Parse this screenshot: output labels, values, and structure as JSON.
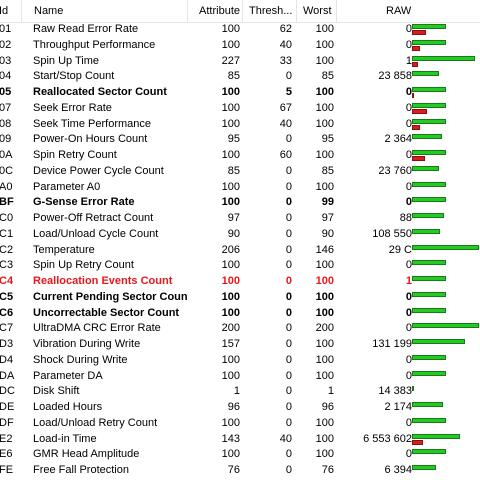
{
  "columns": {
    "id": "Id",
    "name": "Name",
    "attribute": "Attribute",
    "threshold": "Thresh...",
    "worst": "Worst",
    "raw": "RAW"
  },
  "colors": {
    "bar_green": "#22cc22",
    "bar_red": "#d42020",
    "critical_text": "#e8171c"
  },
  "rows": [
    {
      "id": "01",
      "name": "Raw Read Error Rate",
      "attr": "100",
      "thr": "62",
      "worst": "100",
      "raw": "0",
      "style": "normal",
      "green": 0.48,
      "red": 0.2
    },
    {
      "id": "02",
      "name": "Throughput Performance",
      "attr": "100",
      "thr": "40",
      "worst": "100",
      "raw": "0",
      "style": "normal",
      "green": 0.48,
      "red": 0.12
    },
    {
      "id": "03",
      "name": "Spin Up Time",
      "attr": "227",
      "thr": "33",
      "worst": "100",
      "raw": "1",
      "style": "normal",
      "green": 0.9,
      "red": 0.08
    },
    {
      "id": "04",
      "name": "Start/Stop Count",
      "attr": "85",
      "thr": "0",
      "worst": "85",
      "raw": "23 858",
      "style": "normal",
      "green": 0.38,
      "red": 0
    },
    {
      "id": "05",
      "name": "Reallocated Sector Count",
      "attr": "100",
      "thr": "5",
      "worst": "100",
      "raw": "0",
      "style": "bold",
      "green": 0.48,
      "red": 0.02
    },
    {
      "id": "07",
      "name": "Seek Error Rate",
      "attr": "100",
      "thr": "67",
      "worst": "100",
      "raw": "0",
      "style": "normal",
      "green": 0.48,
      "red": 0.22
    },
    {
      "id": "08",
      "name": "Seek Time Performance",
      "attr": "100",
      "thr": "40",
      "worst": "100",
      "raw": "0",
      "style": "normal",
      "green": 0.48,
      "red": 0.12
    },
    {
      "id": "09",
      "name": "Power-On Hours Count",
      "attr": "95",
      "thr": "0",
      "worst": "95",
      "raw": "2 364",
      "style": "normal",
      "green": 0.43,
      "red": 0
    },
    {
      "id": "0A",
      "name": "Spin Retry Count",
      "attr": "100",
      "thr": "60",
      "worst": "100",
      "raw": "0",
      "style": "normal",
      "green": 0.48,
      "red": 0.18
    },
    {
      "id": "0C",
      "name": "Device Power Cycle Count",
      "attr": "85",
      "thr": "0",
      "worst": "85",
      "raw": "23 760",
      "style": "normal",
      "green": 0.38,
      "red": 0
    },
    {
      "id": "A0",
      "name": "Parameter A0",
      "attr": "100",
      "thr": "0",
      "worst": "100",
      "raw": "0",
      "style": "normal",
      "green": 0.48,
      "red": 0
    },
    {
      "id": "BF",
      "name": "G-Sense Error Rate",
      "attr": "100",
      "thr": "0",
      "worst": "99",
      "raw": "0",
      "style": "bold",
      "green": 0.48,
      "red": 0
    },
    {
      "id": "C0",
      "name": "Power-Off Retract Count",
      "attr": "97",
      "thr": "0",
      "worst": "97",
      "raw": "88",
      "style": "normal",
      "green": 0.45,
      "red": 0
    },
    {
      "id": "C1",
      "name": "Load/Unload Cycle Count",
      "attr": "90",
      "thr": "0",
      "worst": "90",
      "raw": "108 550",
      "style": "normal",
      "green": 0.4,
      "red": 0
    },
    {
      "id": "C2",
      "name": "Temperature",
      "attr": "206",
      "thr": "0",
      "worst": "146",
      "raw": "29 C",
      "style": "normal",
      "green": 0.95,
      "red": 0
    },
    {
      "id": "C3",
      "name": "Spin Up Retry Count",
      "attr": "100",
      "thr": "0",
      "worst": "100",
      "raw": "0",
      "style": "normal",
      "green": 0.48,
      "red": 0
    },
    {
      "id": "C4",
      "name": "Reallocation Events Count",
      "attr": "100",
      "thr": "0",
      "worst": "100",
      "raw": "1",
      "style": "critical",
      "green": 0.48,
      "red": 0
    },
    {
      "id": "C5",
      "name": "Current Pending Sector Count",
      "attr": "100",
      "thr": "0",
      "worst": "100",
      "raw": "0",
      "style": "bold",
      "green": 0.48,
      "red": 0
    },
    {
      "id": "C6",
      "name": "Uncorrectable Sector Count",
      "attr": "100",
      "thr": "0",
      "worst": "100",
      "raw": "0",
      "style": "bold",
      "green": 0.48,
      "red": 0
    },
    {
      "id": "C7",
      "name": "UltraDMA CRC Error Rate",
      "attr": "200",
      "thr": "0",
      "worst": "200",
      "raw": "0",
      "style": "normal",
      "green": 0.95,
      "red": 0
    },
    {
      "id": "D3",
      "name": "Vibration During Write",
      "attr": "157",
      "thr": "0",
      "worst": "100",
      "raw": "131 199",
      "style": "normal",
      "green": 0.75,
      "red": 0
    },
    {
      "id": "D4",
      "name": "Shock During Write",
      "attr": "100",
      "thr": "0",
      "worst": "100",
      "raw": "0",
      "style": "normal",
      "green": 0.48,
      "red": 0
    },
    {
      "id": "DA",
      "name": "Parameter DA",
      "attr": "100",
      "thr": "0",
      "worst": "100",
      "raw": "0",
      "style": "normal",
      "green": 0.48,
      "red": 0
    },
    {
      "id": "DC",
      "name": "Disk Shift",
      "attr": "1",
      "thr": "0",
      "worst": "1",
      "raw": "14 383",
      "style": "normal",
      "green": 0.02,
      "red": 0
    },
    {
      "id": "DE",
      "name": "Loaded Hours",
      "attr": "96",
      "thr": "0",
      "worst": "96",
      "raw": "2 174",
      "style": "normal",
      "green": 0.44,
      "red": 0
    },
    {
      "id": "DF",
      "name": "Load/Unload Retry Count",
      "attr": "100",
      "thr": "0",
      "worst": "100",
      "raw": "0",
      "style": "normal",
      "green": 0.48,
      "red": 0
    },
    {
      "id": "E2",
      "name": "Load-in Time",
      "attr": "143",
      "thr": "40",
      "worst": "100",
      "raw": "6 553 602",
      "style": "normal",
      "green": 0.68,
      "red": 0.15
    },
    {
      "id": "E6",
      "name": "GMR Head Amplitude",
      "attr": "100",
      "thr": "0",
      "worst": "100",
      "raw": "0",
      "style": "normal",
      "green": 0.48,
      "red": 0
    },
    {
      "id": "FE",
      "name": "Free Fall Protection",
      "attr": "76",
      "thr": "0",
      "worst": "76",
      "raw": "6 394",
      "style": "normal",
      "green": 0.34,
      "red": 0
    }
  ]
}
